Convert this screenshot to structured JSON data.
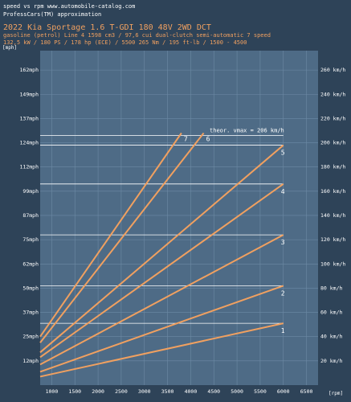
{
  "header": {
    "line1": "speed vs rpm www.automobile-catalog.com",
    "line2": "ProfessCars(TM) approximation",
    "title": "2022 Kia Sportage 1.6 T-GDI 180 48V 2WD DCT",
    "specs1": "gasoline (petrol) Line 4 1598 cm3 / 97,6 cui dual-clutch semi-automatic 7 speed",
    "specs2": "132,5 kW / 180 PS / 178 hp  (ECE) / 5500 265 Nm / 195 ft-lb / 1500 - 4500"
  },
  "units": {
    "left": "[mph]",
    "right": "[rpm]"
  },
  "colors": {
    "background": "#2e4358",
    "plot": "#4e6b86",
    "grid": "#6d8aa5",
    "line": "#f0a060"
  },
  "chart_data": {
    "type": "line",
    "x_range": [
      750,
      6750
    ],
    "y_range_kmh": [
      0,
      276
    ],
    "xticks": [
      "1000",
      "1500",
      "2000",
      "2500",
      "3000",
      "3500",
      "4000",
      "4500",
      "5000",
      "5500",
      "6000",
      "6500"
    ],
    "left_ticks": [
      "12mph",
      "25mph",
      "37mph",
      "50mph",
      "62mph",
      "75mph",
      "87mph",
      "99mph",
      "112mph",
      "124mph",
      "137mph",
      "149mph",
      "162mph"
    ],
    "right_ticks": [
      "20 km/h",
      "40 km/h",
      "60 km/h",
      "80 km/h",
      "100 km/h",
      "120 km/h",
      "140 km/h",
      "160 km/h",
      "180 km/h",
      "200 km/h",
      "220 km/h",
      "240 km/h",
      "260 km/h"
    ],
    "vmax_label": "theor. vmax = 206 km/h",
    "vmax_kmh": 206,
    "series": [
      {
        "name": "1",
        "x": [
          750,
          6000
        ],
        "y": [
          7,
          51
        ]
      },
      {
        "name": "2",
        "x": [
          750,
          6000
        ],
        "y": [
          11,
          82
        ]
      },
      {
        "name": "3",
        "x": [
          750,
          6000
        ],
        "y": [
          17,
          124
        ]
      },
      {
        "name": "4",
        "x": [
          750,
          6000
        ],
        "y": [
          23,
          166
        ]
      },
      {
        "name": "5",
        "x": [
          750,
          6000
        ],
        "y": [
          27,
          198
        ]
      },
      {
        "name": "6",
        "x": [
          750,
          4280
        ],
        "y": [
          35,
          208
        ]
      },
      {
        "name": "7",
        "x": [
          750,
          3800
        ],
        "y": [
          40,
          208
        ]
      }
    ]
  }
}
